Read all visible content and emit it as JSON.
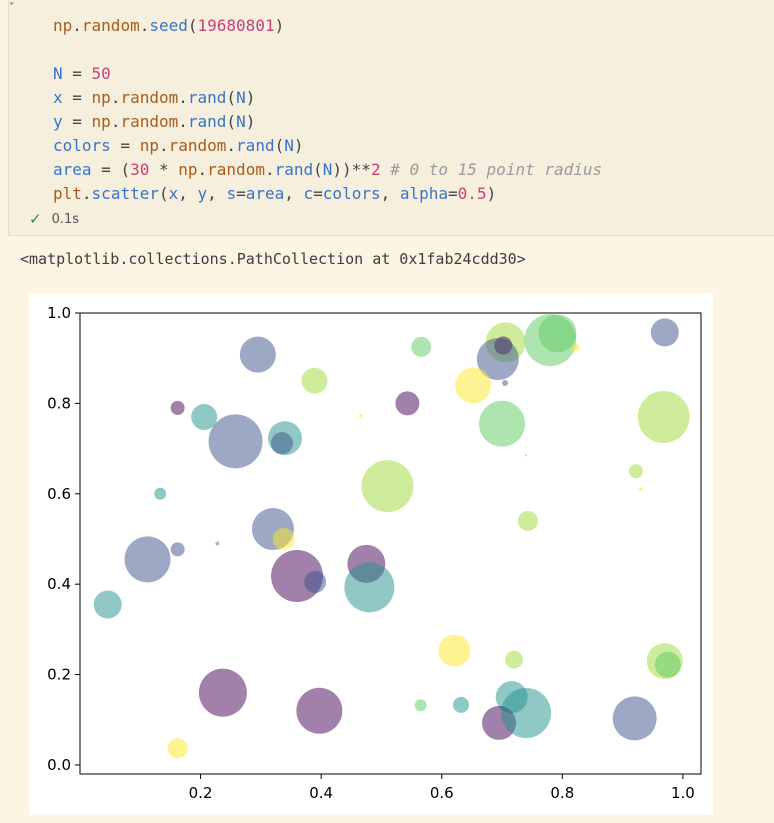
{
  "cell": {
    "code_lines": [
      [
        {
          "t": "np",
          "c": "fn"
        },
        {
          "t": ".",
          "c": "op"
        },
        {
          "t": "random",
          "c": "fn"
        },
        {
          "t": ".",
          "c": "op"
        },
        {
          "t": "seed",
          "c": "kw"
        },
        {
          "t": "(",
          "c": "op"
        },
        {
          "t": "19680801",
          "c": "num"
        },
        {
          "t": ")",
          "c": "op"
        }
      ],
      [],
      [
        {
          "t": "N",
          "c": "var"
        },
        {
          "t": " = ",
          "c": "op"
        },
        {
          "t": "50",
          "c": "num"
        }
      ],
      [
        {
          "t": "x",
          "c": "var"
        },
        {
          "t": " = ",
          "c": "op"
        },
        {
          "t": "np",
          "c": "fn"
        },
        {
          "t": ".",
          "c": "op"
        },
        {
          "t": "random",
          "c": "fn"
        },
        {
          "t": ".",
          "c": "op"
        },
        {
          "t": "rand",
          "c": "kw"
        },
        {
          "t": "(",
          "c": "op"
        },
        {
          "t": "N",
          "c": "var"
        },
        {
          "t": ")",
          "c": "op"
        }
      ],
      [
        {
          "t": "y",
          "c": "var"
        },
        {
          "t": " = ",
          "c": "op"
        },
        {
          "t": "np",
          "c": "fn"
        },
        {
          "t": ".",
          "c": "op"
        },
        {
          "t": "random",
          "c": "fn"
        },
        {
          "t": ".",
          "c": "op"
        },
        {
          "t": "rand",
          "c": "kw"
        },
        {
          "t": "(",
          "c": "op"
        },
        {
          "t": "N",
          "c": "var"
        },
        {
          "t": ")",
          "c": "op"
        }
      ],
      [
        {
          "t": "colors",
          "c": "var"
        },
        {
          "t": " = ",
          "c": "op"
        },
        {
          "t": "np",
          "c": "fn"
        },
        {
          "t": ".",
          "c": "op"
        },
        {
          "t": "random",
          "c": "fn"
        },
        {
          "t": ".",
          "c": "op"
        },
        {
          "t": "rand",
          "c": "kw"
        },
        {
          "t": "(",
          "c": "op"
        },
        {
          "t": "N",
          "c": "var"
        },
        {
          "t": ")",
          "c": "op"
        }
      ],
      [
        {
          "t": "area",
          "c": "var"
        },
        {
          "t": " = ",
          "c": "op"
        },
        {
          "t": "(",
          "c": "op"
        },
        {
          "t": "30",
          "c": "num"
        },
        {
          "t": " * ",
          "c": "op"
        },
        {
          "t": "np",
          "c": "fn"
        },
        {
          "t": ".",
          "c": "op"
        },
        {
          "t": "random",
          "c": "fn"
        },
        {
          "t": ".",
          "c": "op"
        },
        {
          "t": "rand",
          "c": "kw"
        },
        {
          "t": "(",
          "c": "op"
        },
        {
          "t": "N",
          "c": "var"
        },
        {
          "t": "))",
          "c": "op"
        },
        {
          "t": "**",
          "c": "op"
        },
        {
          "t": "2",
          "c": "num"
        },
        {
          "t": " ",
          "c": "op"
        },
        {
          "t": "# 0 to 15 point radius",
          "c": "cmt"
        }
      ],
      [
        {
          "t": "plt",
          "c": "fn"
        },
        {
          "t": ".",
          "c": "op"
        },
        {
          "t": "scatter",
          "c": "kw"
        },
        {
          "t": "(",
          "c": "op"
        },
        {
          "t": "x",
          "c": "var"
        },
        {
          "t": ", ",
          "c": "op"
        },
        {
          "t": "y",
          "c": "var"
        },
        {
          "t": ", ",
          "c": "op"
        },
        {
          "t": "s",
          "c": "var"
        },
        {
          "t": "=",
          "c": "op"
        },
        {
          "t": "area",
          "c": "var"
        },
        {
          "t": ", ",
          "c": "op"
        },
        {
          "t": "c",
          "c": "var"
        },
        {
          "t": "=",
          "c": "op"
        },
        {
          "t": "colors",
          "c": "var"
        },
        {
          "t": ", ",
          "c": "op"
        },
        {
          "t": "alpha",
          "c": "var"
        },
        {
          "t": "=",
          "c": "op"
        },
        {
          "t": "0.5",
          "c": "num"
        },
        {
          "t": ")",
          "c": "op"
        }
      ]
    ],
    "status_time": "0.1s",
    "status_icon": "check-icon"
  },
  "output": {
    "text": "<matplotlib.collections.PathCollection at 0x1fab24cdd30>"
  },
  "colors": {
    "purple": "#440154",
    "teal": "#21918c",
    "green": "#5ec962",
    "yellow": "#fde725",
    "lime": "#a0da39",
    "blue": "#3b528b"
  },
  "chart_data": {
    "type": "scatter",
    "alpha": 0.5,
    "xlim": [
      -0.0,
      1.03
    ],
    "ylim": [
      -0.02,
      1.0
    ],
    "xticks": [
      "0.2",
      "0.4",
      "0.6",
      "0.8",
      "1.0"
    ],
    "xtick_values": [
      0.2,
      0.4,
      0.6,
      0.8,
      1.0
    ],
    "yticks": [
      "0.0",
      "0.2",
      "0.4",
      "0.6",
      "0.8",
      "1.0"
    ],
    "ytick_values": [
      0.0,
      0.2,
      0.4,
      0.6,
      0.8,
      1.0
    ],
    "points": [
      {
        "x": 0.295,
        "y": 0.908,
        "r": 18,
        "c": "#3b528b"
      },
      {
        "x": 0.162,
        "y": 0.79,
        "r": 7,
        "c": "#440154"
      },
      {
        "x": 0.206,
        "y": 0.77,
        "r": 13,
        "c": "#21918c"
      },
      {
        "x": 0.258,
        "y": 0.716,
        "r": 27,
        "c": "#3b528b"
      },
      {
        "x": 0.34,
        "y": 0.723,
        "r": 17,
        "c": "#21918c"
      },
      {
        "x": 0.335,
        "y": 0.712,
        "r": 11,
        "c": "#3b528b"
      },
      {
        "x": 0.389,
        "y": 0.85,
        "r": 13,
        "c": "#a0da39"
      },
      {
        "x": 0.466,
        "y": 0.773,
        "r": 2,
        "c": "#fde725"
      },
      {
        "x": 0.543,
        "y": 0.8,
        "r": 12,
        "c": "#440154"
      },
      {
        "x": 0.566,
        "y": 0.925,
        "r": 10,
        "c": "#5ec962"
      },
      {
        "x": 0.706,
        "y": 0.935,
        "r": 20,
        "c": "#a0da39"
      },
      {
        "x": 0.702,
        "y": 0.928,
        "r": 9,
        "c": "#440154"
      },
      {
        "x": 0.693,
        "y": 0.898,
        "r": 21,
        "c": "#3b528b"
      },
      {
        "x": 0.705,
        "y": 0.845,
        "r": 3,
        "c": "#3b528b"
      },
      {
        "x": 0.652,
        "y": 0.84,
        "r": 18,
        "c": "#fde725"
      },
      {
        "x": 0.78,
        "y": 0.94,
        "r": 26,
        "c": "#5ec962"
      },
      {
        "x": 0.792,
        "y": 0.955,
        "r": 19,
        "c": "#5ec962"
      },
      {
        "x": 0.822,
        "y": 0.925,
        "r": 4,
        "c": "#fde725"
      },
      {
        "x": 0.97,
        "y": 0.957,
        "r": 14,
        "c": "#3b528b"
      },
      {
        "x": 0.7,
        "y": 0.755,
        "r": 23,
        "c": "#5ec962"
      },
      {
        "x": 0.74,
        "y": 0.685,
        "r": 1,
        "c": "#5ec962"
      },
      {
        "x": 0.968,
        "y": 0.77,
        "r": 26,
        "c": "#a0da39"
      },
      {
        "x": 0.922,
        "y": 0.65,
        "r": 7,
        "c": "#a0da39"
      },
      {
        "x": 0.93,
        "y": 0.61,
        "r": 2,
        "c": "#fde725"
      },
      {
        "x": 0.133,
        "y": 0.6,
        "r": 6,
        "c": "#21918c"
      },
      {
        "x": 0.51,
        "y": 0.617,
        "r": 26,
        "c": "#a0da39"
      },
      {
        "x": 0.743,
        "y": 0.54,
        "r": 10,
        "c": "#a0da39"
      },
      {
        "x": 0.32,
        "y": 0.522,
        "r": 21,
        "c": "#3b528b"
      },
      {
        "x": 0.338,
        "y": 0.5,
        "r": 11,
        "c": "#fde725"
      },
      {
        "x": 0.228,
        "y": 0.49,
        "r": 2,
        "c": "#21918c"
      },
      {
        "x": 0.162,
        "y": 0.477,
        "r": 7,
        "c": "#3b528b"
      },
      {
        "x": 0.112,
        "y": 0.455,
        "r": 23,
        "c": "#3b528b"
      },
      {
        "x": 0.36,
        "y": 0.418,
        "r": 26,
        "c": "#440154"
      },
      {
        "x": 0.39,
        "y": 0.405,
        "r": 11,
        "c": "#3b528b"
      },
      {
        "x": 0.475,
        "y": 0.445,
        "r": 19,
        "c": "#440154"
      },
      {
        "x": 0.48,
        "y": 0.393,
        "r": 25,
        "c": "#21918c"
      },
      {
        "x": 0.046,
        "y": 0.355,
        "r": 14,
        "c": "#21918c"
      },
      {
        "x": 0.621,
        "y": 0.253,
        "r": 16,
        "c": "#fde725"
      },
      {
        "x": 0.72,
        "y": 0.233,
        "r": 9,
        "c": "#a0da39"
      },
      {
        "x": 0.97,
        "y": 0.23,
        "r": 18,
        "c": "#a0da39"
      },
      {
        "x": 0.975,
        "y": 0.222,
        "r": 13,
        "c": "#5ec962"
      },
      {
        "x": 0.237,
        "y": 0.16,
        "r": 24,
        "c": "#440154"
      },
      {
        "x": 0.397,
        "y": 0.12,
        "r": 23,
        "c": "#440154"
      },
      {
        "x": 0.565,
        "y": 0.132,
        "r": 6,
        "c": "#5ec962"
      },
      {
        "x": 0.632,
        "y": 0.133,
        "r": 8,
        "c": "#21918c"
      },
      {
        "x": 0.716,
        "y": 0.15,
        "r": 16,
        "c": "#21918c"
      },
      {
        "x": 0.695,
        "y": 0.093,
        "r": 17,
        "c": "#440154"
      },
      {
        "x": 0.74,
        "y": 0.115,
        "r": 25,
        "c": "#21918c"
      },
      {
        "x": 0.92,
        "y": 0.103,
        "r": 22,
        "c": "#3b528b"
      },
      {
        "x": 0.162,
        "y": 0.037,
        "r": 10,
        "c": "#fde725"
      }
    ]
  }
}
